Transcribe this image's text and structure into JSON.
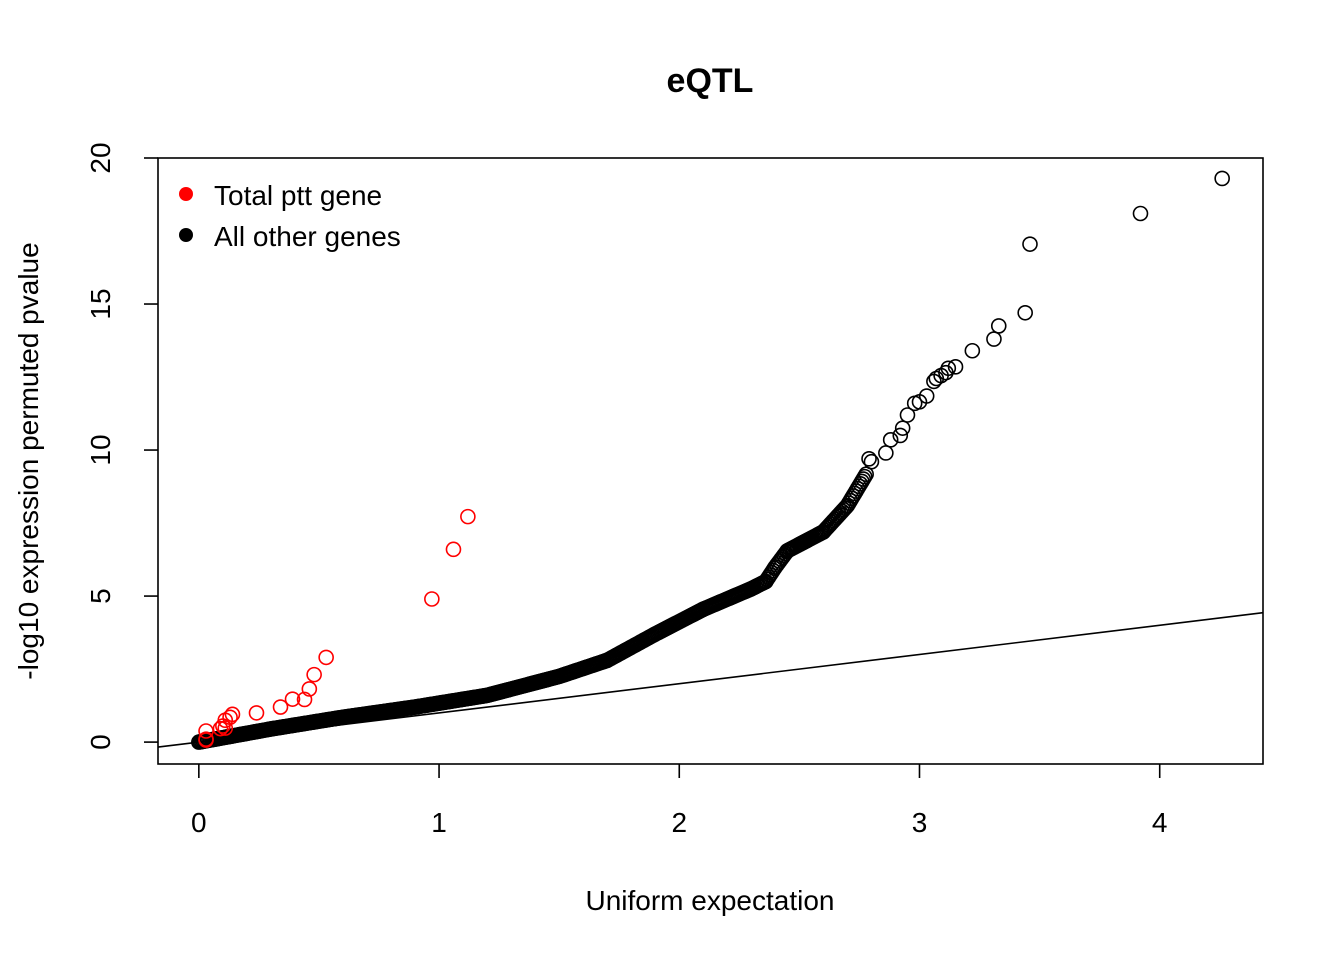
{
  "chart_data": {
    "type": "scatter",
    "title": "eQTL",
    "xlabel": "Uniform expectation",
    "ylabel": "-log10 expression permuted pvalue",
    "xlim": [
      -0.17,
      4.43
    ],
    "ylim": [
      -0.75,
      20.0
    ],
    "x_ticks": [
      0,
      1,
      2,
      3,
      4
    ],
    "y_ticks": [
      0,
      5,
      10,
      15,
      20
    ],
    "legend": {
      "position": "top-left",
      "entries": [
        {
          "label": "Total ptt gene",
          "color": "#ff0000"
        },
        {
          "label": "All other genes",
          "color": "#000000"
        }
      ]
    },
    "reference_line": {
      "slope": 1,
      "intercept": 0
    },
    "series": [
      {
        "name": "Total ptt gene",
        "color": "#ff0000",
        "points": [
          [
            0.03,
            0.07
          ],
          [
            0.03,
            0.1
          ],
          [
            0.03,
            0.38
          ],
          [
            0.09,
            0.46
          ],
          [
            0.1,
            0.55
          ],
          [
            0.11,
            0.48
          ],
          [
            0.11,
            0.75
          ],
          [
            0.13,
            0.85
          ],
          [
            0.14,
            0.95
          ],
          [
            0.24,
            1.0
          ],
          [
            0.34,
            1.2
          ],
          [
            0.39,
            1.47
          ],
          [
            0.44,
            1.46
          ],
          [
            0.46,
            1.82
          ],
          [
            0.48,
            2.31
          ],
          [
            0.53,
            2.9
          ],
          [
            0.97,
            4.9
          ],
          [
            1.06,
            6.6
          ],
          [
            1.12,
            7.72
          ]
        ]
      },
      {
        "name": "All other genes",
        "color": "#000000",
        "curve": [
          [
            0,
            0
          ],
          [
            0.3,
            0.45
          ],
          [
            0.6,
            0.85
          ],
          [
            0.9,
            1.2
          ],
          [
            1.2,
            1.6
          ],
          [
            1.5,
            2.25
          ],
          [
            1.7,
            2.8
          ],
          [
            1.9,
            3.7
          ],
          [
            2.1,
            4.55
          ],
          [
            2.3,
            5.25
          ],
          [
            2.36,
            5.5
          ],
          [
            2.4,
            6.0
          ],
          [
            2.45,
            6.55
          ],
          [
            2.6,
            7.2
          ],
          [
            2.7,
            8.1
          ],
          [
            2.78,
            9.2
          ]
        ],
        "curve_step": 0.006,
        "points": [
          [
            2.8,
            9.6
          ],
          [
            2.79,
            9.7
          ],
          [
            2.86,
            9.9
          ],
          [
            2.88,
            10.35
          ],
          [
            2.92,
            10.5
          ],
          [
            2.93,
            10.75
          ],
          [
            2.95,
            11.2
          ],
          [
            2.98,
            11.6
          ],
          [
            3.0,
            11.65
          ],
          [
            3.03,
            11.85
          ],
          [
            3.06,
            12.35
          ],
          [
            3.07,
            12.45
          ],
          [
            3.09,
            12.55
          ],
          [
            3.11,
            12.65
          ],
          [
            3.12,
            12.8
          ],
          [
            3.15,
            12.85
          ],
          [
            3.22,
            13.4
          ],
          [
            3.31,
            13.8
          ],
          [
            3.33,
            14.25
          ],
          [
            3.44,
            14.7
          ],
          [
            3.46,
            17.05
          ],
          [
            3.92,
            18.1
          ],
          [
            4.26,
            19.3
          ]
        ]
      }
    ]
  }
}
